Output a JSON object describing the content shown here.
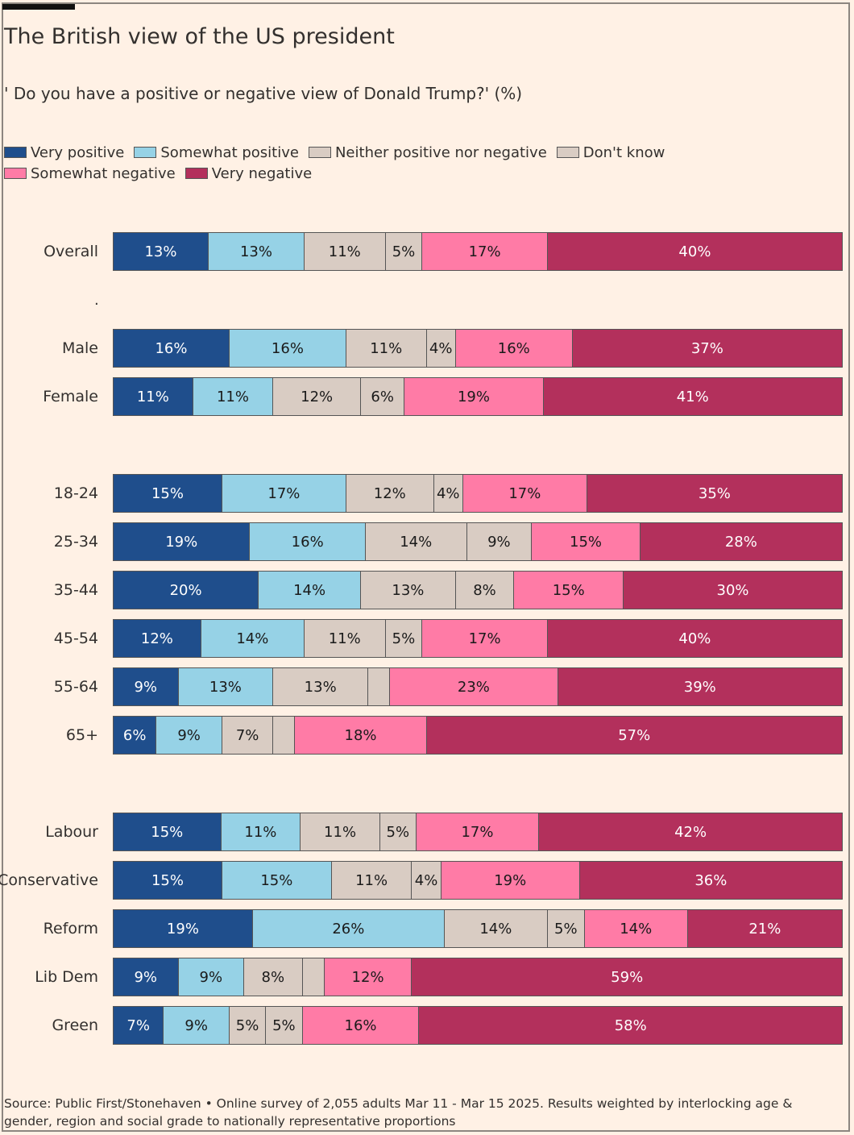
{
  "chart_data": {
    "type": "bar",
    "orientation": "horizontal-stacked-100",
    "title": "The British view of the US president",
    "subtitle": "' Do you have a positive or negative view of Donald Trump?' (%)",
    "legend": [
      {
        "name": "Very positive",
        "color": "#1f4e8c"
      },
      {
        "name": "Somewhat positive",
        "color": "#96d2e6"
      },
      {
        "name": "Neither positive nor negative",
        "color": "#d9ccc3"
      },
      {
        "name": "Don't know",
        "color": "#d9ccc3"
      },
      {
        "name": "Somewhat negative",
        "color": "#ff7ba6"
      },
      {
        "name": "Very negative",
        "color": "#b3305c"
      }
    ],
    "series_names": [
      "Very positive",
      "Somewhat positive",
      "Neither positive nor negative",
      "Don't know",
      "Somewhat negative",
      "Very negative"
    ],
    "groups": [
      {
        "rows": [
          {
            "label": "Overall",
            "values": [
              13,
              13,
              11,
              5,
              17,
              40
            ]
          }
        ]
      },
      {
        "rows": [
          {
            "label": "Male",
            "values": [
              16,
              16,
              11,
              4,
              16,
              37
            ]
          },
          {
            "label": "Female",
            "values": [
              11,
              11,
              12,
              6,
              19,
              41
            ]
          }
        ]
      },
      {
        "rows": [
          {
            "label": "18-24",
            "values": [
              15,
              17,
              12,
              4,
              17,
              35
            ]
          },
          {
            "label": "25-34",
            "values": [
              19,
              16,
              14,
              9,
              15,
              28
            ]
          },
          {
            "label": "35-44",
            "values": [
              20,
              14,
              13,
              8,
              15,
              30
            ]
          },
          {
            "label": "45-54",
            "values": [
              12,
              14,
              11,
              5,
              17,
              40
            ]
          },
          {
            "label": "55-64",
            "values": [
              9,
              13,
              13,
              3,
              23,
              39
            ]
          },
          {
            "label": "65+",
            "values": [
              6,
              9,
              7,
              3,
              18,
              57
            ]
          }
        ]
      },
      {
        "rows": [
          {
            "label": "Labour",
            "values": [
              15,
              11,
              11,
              5,
              17,
              42
            ]
          },
          {
            "label": "Conservative",
            "values": [
              15,
              15,
              11,
              4,
              19,
              36
            ]
          },
          {
            "label": "Reform",
            "values": [
              19,
              26,
              14,
              5,
              14,
              21
            ]
          },
          {
            "label": "Lib Dem",
            "values": [
              9,
              9,
              8,
              3,
              12,
              59
            ]
          },
          {
            "label": "Green",
            "values": [
              7,
              9,
              5,
              5,
              16,
              58
            ]
          }
        ]
      }
    ],
    "hidden_label_threshold": 4,
    "xlim": [
      0,
      100
    ]
  },
  "separator_text": ".",
  "source": "Source: Public First/Stonehaven • Online survey of 2,055 adults Mar 11 - Mar 15 2025. Results weighted by interlocking age & gender, region and social grade to nationally representative proportions"
}
